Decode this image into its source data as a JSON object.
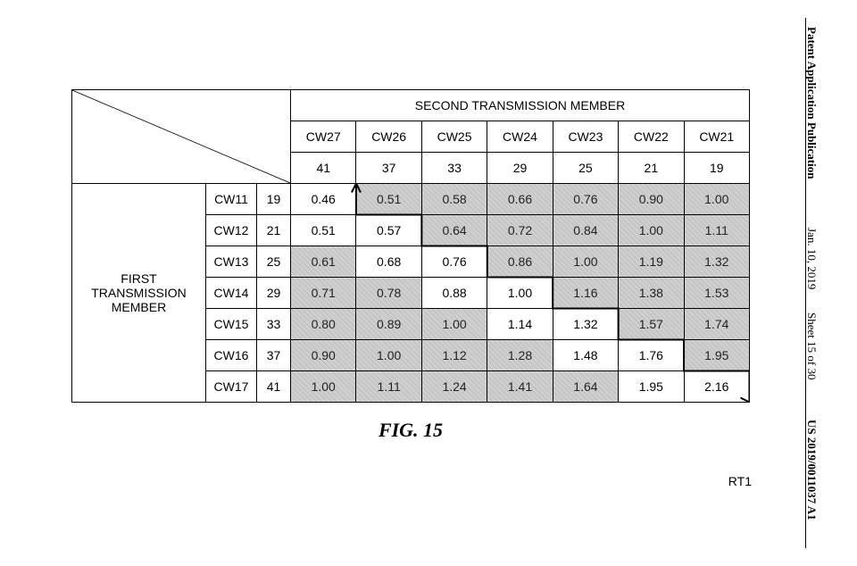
{
  "margin": {
    "line1": "Patent Application Publication",
    "line2": "Jan. 10, 2019",
    "line3": "Sheet 15 of 30",
    "line4": "US 2019/0011037 A1"
  },
  "figure": {
    "caption": "FIG. 15",
    "rt_label": "RT1",
    "header_top": "SECOND TRANSMISSION MEMBER",
    "row_lbl_vert": "FIRST TRANSMISSION MEMBER",
    "col_labels": [
      "CW27",
      "CW26",
      "CW25",
      "CW24",
      "CW23",
      "CW22",
      "CW21"
    ],
    "col_values": [
      "41",
      "37",
      "33",
      "29",
      "25",
      "21",
      "19"
    ],
    "rows": [
      {
        "label": "CW11",
        "value": "19",
        "cells": [
          {
            "v": "0.46",
            "s": false
          },
          {
            "v": "0.51",
            "s": true
          },
          {
            "v": "0.58",
            "s": true
          },
          {
            "v": "0.66",
            "s": true
          },
          {
            "v": "0.76",
            "s": true
          },
          {
            "v": "0.90",
            "s": true
          },
          {
            "v": "1.00",
            "s": true
          }
        ]
      },
      {
        "label": "CW12",
        "value": "21",
        "cells": [
          {
            "v": "0.51",
            "s": false
          },
          {
            "v": "0.57",
            "s": false
          },
          {
            "v": "0.64",
            "s": true
          },
          {
            "v": "0.72",
            "s": true
          },
          {
            "v": "0.84",
            "s": true
          },
          {
            "v": "1.00",
            "s": true
          },
          {
            "v": "1.11",
            "s": true
          }
        ]
      },
      {
        "label": "CW13",
        "value": "25",
        "cells": [
          {
            "v": "0.61",
            "s": true
          },
          {
            "v": "0.68",
            "s": false
          },
          {
            "v": "0.76",
            "s": false
          },
          {
            "v": "0.86",
            "s": true
          },
          {
            "v": "1.00",
            "s": true
          },
          {
            "v": "1.19",
            "s": true
          },
          {
            "v": "1.32",
            "s": true
          }
        ]
      },
      {
        "label": "CW14",
        "value": "29",
        "cells": [
          {
            "v": "0.71",
            "s": true
          },
          {
            "v": "0.78",
            "s": true
          },
          {
            "v": "0.88",
            "s": false
          },
          {
            "v": "1.00",
            "s": false
          },
          {
            "v": "1.16",
            "s": true
          },
          {
            "v": "1.38",
            "s": true
          },
          {
            "v": "1.53",
            "s": true
          }
        ]
      },
      {
        "label": "CW15",
        "value": "33",
        "cells": [
          {
            "v": "0.80",
            "s": true
          },
          {
            "v": "0.89",
            "s": true
          },
          {
            "v": "1.00",
            "s": true
          },
          {
            "v": "1.14",
            "s": false
          },
          {
            "v": "1.32",
            "s": false
          },
          {
            "v": "1.57",
            "s": true
          },
          {
            "v": "1.74",
            "s": true
          }
        ]
      },
      {
        "label": "CW16",
        "value": "37",
        "cells": [
          {
            "v": "0.90",
            "s": true
          },
          {
            "v": "1.00",
            "s": true
          },
          {
            "v": "1.12",
            "s": true
          },
          {
            "v": "1.28",
            "s": true
          },
          {
            "v": "1.48",
            "s": false
          },
          {
            "v": "1.76",
            "s": false
          },
          {
            "v": "1.95",
            "s": true
          }
        ]
      },
      {
        "label": "CW17",
        "value": "41",
        "cells": [
          {
            "v": "1.00",
            "s": true
          },
          {
            "v": "1.11",
            "s": true
          },
          {
            "v": "1.24",
            "s": true
          },
          {
            "v": "1.41",
            "s": true
          },
          {
            "v": "1.64",
            "s": true
          },
          {
            "v": "1.95",
            "s": false
          },
          {
            "v": "2.16",
            "s": false
          }
        ]
      }
    ],
    "col_widths": {
      "left_label": 150,
      "cw": 55,
      "val": 40,
      "data": 73.5
    }
  }
}
